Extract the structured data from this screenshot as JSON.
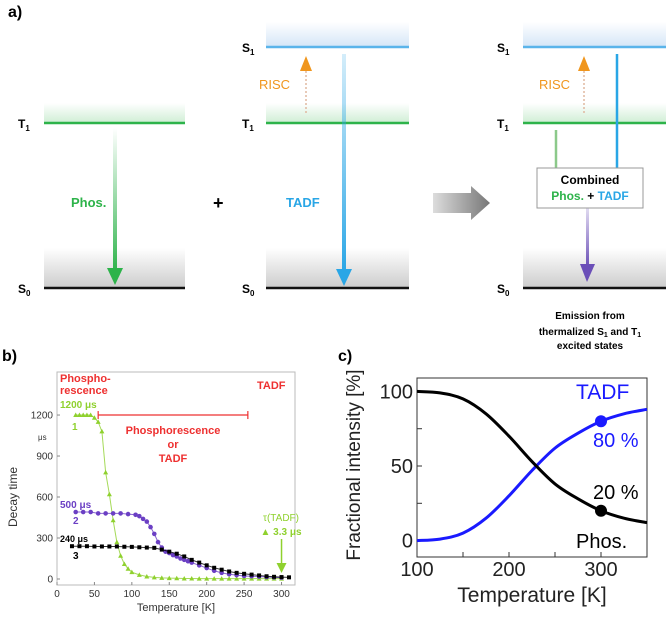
{
  "colors": {
    "phos": "#2db34a",
    "tadf": "#29a6e6",
    "risc": "#f0961e",
    "purple": "#6b4fb8",
    "red": "#ee3030",
    "lime": "#8fd12e",
    "blue": "#1a1aff",
    "black": "#000000"
  },
  "panel_a": {
    "label": "a)",
    "levels": {
      "s1": "S",
      "s1_sub": "1",
      "t1": "T",
      "t1_sub": "1",
      "s0": "S",
      "s0_sub": "0"
    },
    "phos_label": "Phos.",
    "plus": "+",
    "tadf_label": "TADF",
    "risc_label": "RISC",
    "combined_title": "Combined",
    "combined_phos": "Phos.",
    "combined_plus": " + ",
    "combined_tadf": "TADF",
    "caption_line1": "Emission from",
    "caption_line2a": "thermalized S",
    "caption_line2sub1": "1",
    "caption_line2b": " and T",
    "caption_line2sub2": "1",
    "caption_line3": "excited states"
  },
  "chart_data": [
    {
      "panel_label": "b)",
      "type": "scatter",
      "xlabel": "Temperature [K]",
      "ylabel": "Decay time",
      "yunit": "μs",
      "xlim": [
        0,
        318
      ],
      "ylim": [
        -44,
        1515
      ],
      "xticks": [
        0,
        50,
        100,
        150,
        200,
        250,
        300
      ],
      "yticks": [
        0,
        300,
        600,
        900,
        1200
      ],
      "series": [
        {
          "name": "1",
          "value_label": "1200 μs",
          "marker": "triangle",
          "color": "#8fd12e",
          "x": [
            25,
            30,
            35,
            40,
            45,
            50,
            55,
            60,
            65,
            70,
            75,
            80,
            85,
            90,
            95,
            100,
            110,
            120,
            130,
            140,
            150,
            160,
            170,
            180,
            190,
            200,
            210,
            220,
            230,
            240,
            250,
            260,
            270,
            280,
            290,
            300
          ],
          "y": [
            1200,
            1200,
            1200,
            1200,
            1200,
            1180,
            1150,
            1080,
            780,
            620,
            430,
            270,
            170,
            110,
            75,
            50,
            30,
            18,
            12,
            8,
            6,
            5,
            4,
            4,
            3,
            3,
            3,
            3,
            3,
            3,
            3,
            3,
            3,
            3,
            3,
            3
          ]
        },
        {
          "name": "2",
          "value_label": "500 μs",
          "marker": "circle",
          "color": "#6b3fc4",
          "x": [
            25,
            35,
            45,
            55,
            65,
            75,
            85,
            95,
            105,
            110,
            115,
            120,
            125,
            130,
            135,
            140,
            145,
            150,
            155,
            160,
            165,
            170,
            175,
            180,
            190,
            200,
            210,
            220,
            230,
            240,
            250,
            260,
            270,
            280,
            290,
            300
          ],
          "y": [
            490,
            490,
            490,
            480,
            480,
            480,
            480,
            475,
            470,
            460,
            440,
            420,
            380,
            330,
            270,
            230,
            200,
            190,
            175,
            165,
            150,
            140,
            130,
            120,
            100,
            80,
            60,
            45,
            35,
            28,
            22,
            20,
            18,
            15,
            12,
            10
          ]
        },
        {
          "name": "3",
          "value_label": "240 μs",
          "marker": "square",
          "color": "#000000",
          "x": [
            20,
            30,
            40,
            50,
            60,
            70,
            80,
            90,
            100,
            110,
            120,
            130,
            140,
            150,
            160,
            170,
            180,
            190,
            200,
            210,
            220,
            230,
            240,
            250,
            260,
            270,
            280,
            290,
            300,
            310
          ],
          "y": [
            240,
            240,
            240,
            238,
            238,
            238,
            238,
            236,
            235,
            232,
            230,
            228,
            215,
            200,
            185,
            165,
            140,
            120,
            100,
            82,
            68,
            55,
            45,
            38,
            32,
            26,
            20,
            16,
            14,
            12
          ]
        }
      ],
      "annotations": {
        "phospho_line1": "Phospho-",
        "phospho_line2": "rescence",
        "tadf_region": "TADF",
        "middle_line1": "Phosphorescence",
        "middle_line2": "or",
        "middle_line3": "TADF",
        "bracket_range_K": [
          55,
          255
        ],
        "tau_label": "τ(TADF)",
        "tau_value": "▲ 3.3 μs",
        "tau_arrow_at_K": 300
      }
    },
    {
      "panel_label": "c)",
      "type": "line",
      "xlabel": "Temperature [K]",
      "ylabel": "Fractional intensity [%]",
      "xlim": [
        100,
        350
      ],
      "ylim": [
        -11,
        109
      ],
      "xticks": [
        100,
        200,
        300
      ],
      "yticks": [
        0,
        50,
        100
      ],
      "series": [
        {
          "name": "TADF",
          "color": "#1a1aff",
          "x": [
            100,
            125,
            150,
            175,
            200,
            225,
            250,
            275,
            300,
            325,
            350
          ],
          "y": [
            0,
            1,
            5,
            15,
            30,
            47,
            62,
            72,
            80,
            85,
            88
          ],
          "highlight": {
            "x": 300,
            "y": 80,
            "label": "80 %"
          }
        },
        {
          "name": "Phos.",
          "color": "#000000",
          "x": [
            100,
            125,
            150,
            175,
            200,
            225,
            250,
            275,
            300,
            325,
            350
          ],
          "y": [
            100,
            99,
            95,
            85,
            70,
            53,
            38,
            28,
            20,
            15,
            12
          ],
          "highlight": {
            "x": 300,
            "y": 20,
            "label": "20 %"
          }
        }
      ]
    }
  ]
}
